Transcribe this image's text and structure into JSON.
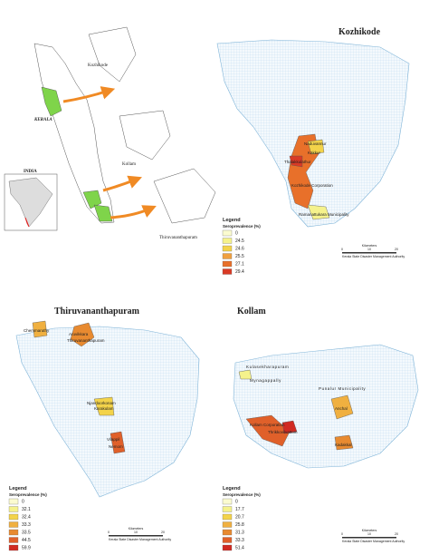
{
  "overview": {
    "labels": [
      "Kozhikode",
      "KERALA",
      "INDIA",
      "Kollam",
      "Thiruvananthapuram"
    ]
  },
  "panels": [
    {
      "title": "Kozhikode",
      "places": [
        "Naduvannur",
        "Kakkur",
        "Thalakkulathur",
        "Kozhikode Corporation",
        "Ramanattukara Municipality"
      ],
      "legend": {
        "title": "Legend",
        "subtitle": "Seroprevalence (%)",
        "values": [
          0,
          24.5,
          24.6,
          25.5,
          27.1,
          29.4
        ],
        "colors": [
          "#fbfbd0",
          "#f5f28c",
          "#f3d34a",
          "#f0a040",
          "#e8702a",
          "#d93a25"
        ]
      },
      "scale": {
        "unit": "Kilometers",
        "ticks": [
          0,
          10,
          20
        ]
      },
      "credit": "Kerala State Disaster Management Authority"
    },
    {
      "title": "Thiruvananthapuram",
      "places": [
        "Chemmaruthy",
        "Aruvikkara",
        "Thiruvananthapuram",
        "Njandoorkonam",
        "Karakulam",
        "Vilappil",
        "Nemom"
      ],
      "legend": {
        "title": "Legend",
        "subtitle": "Seroprevalence (%)",
        "values": [
          0,
          32.1,
          32.4,
          33.3,
          33.5,
          44.5,
          59.9
        ],
        "colors": [
          "#fbfbd0",
          "#f5f28c",
          "#f3d34a",
          "#f0b040",
          "#e88a30",
          "#e0602a",
          "#d12a22"
        ]
      },
      "scale": {
        "unit": "Kilometers",
        "ticks": [
          0,
          10,
          20
        ]
      },
      "credit": "Kerala State Disaster Management Authority"
    },
    {
      "title": "Kollam",
      "places": [
        "Kulasekharapuram",
        "Mynagappally",
        "Punalur Municipality",
        "Anchal",
        "Kollam Corporation",
        "Thrikkovilvattom",
        "Kadakkal"
      ],
      "legend": {
        "title": "Legend",
        "subtitle": "Seroprevalence (%)",
        "values": [
          0,
          17.7,
          20.7,
          25.8,
          31.3,
          33.3,
          51.4
        ],
        "colors": [
          "#fbfbd0",
          "#f5f28c",
          "#f3d34a",
          "#f0b040",
          "#e88a30",
          "#e0602a",
          "#d12a22"
        ]
      },
      "scale": {
        "unit": "Kilometers",
        "ticks": [
          0,
          10,
          20
        ]
      },
      "credit": "Kerala State Disaster Management Authority"
    }
  ]
}
